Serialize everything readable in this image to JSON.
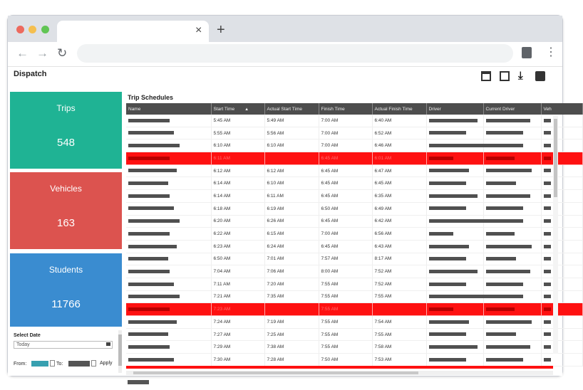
{
  "app": {
    "title": "Dispatch"
  },
  "browser": {
    "new_tab": "+",
    "tab_close": "×",
    "back": "←",
    "forward": "→",
    "reload": "↻",
    "menu": "⋮"
  },
  "toolbar": {
    "download_icon": "⤓"
  },
  "tiles": {
    "trips": {
      "label": "Trips",
      "value": "548",
      "color": "#1fb394"
    },
    "vehicles": {
      "label": "Vehicles",
      "value": "163",
      "color": "#dc534f"
    },
    "students": {
      "label": "Students",
      "value": "11766",
      "color": "#3a8cd0"
    }
  },
  "filters": {
    "select_date_label": "Select Date",
    "date_value": "Today",
    "from_label": "From:",
    "to_label": "To:",
    "apply_label": "Apply"
  },
  "grid": {
    "title": "Trip Schedules",
    "columns": [
      "Name",
      "Start Time",
      "Actual Start Time",
      "Finish Time",
      "Actual Finish Time",
      "Driver",
      "Current Driver",
      "Veh"
    ],
    "sort_indicator": "▲",
    "rows": [
      {
        "start": "5:45 AM",
        "actual_start": "5:49 AM",
        "finish": "7:00 AM",
        "actual_finish": "6:40 AM",
        "highlight": false
      },
      {
        "start": "5:55 AM",
        "actual_start": "5:56 AM",
        "finish": "7:00 AM",
        "actual_finish": "6:52 AM",
        "highlight": false
      },
      {
        "start": "6:10 AM",
        "actual_start": "6:10 AM",
        "finish": "7:00 AM",
        "actual_finish": "6:46 AM",
        "highlight": false
      },
      {
        "start": "6:11 AM",
        "actual_start": "",
        "finish": "6:45 AM",
        "actual_finish": "6:01 AM",
        "highlight": true
      },
      {
        "start": "6:12 AM",
        "actual_start": "6:12 AM",
        "finish": "6:45 AM",
        "actual_finish": "6:47 AM",
        "highlight": false
      },
      {
        "start": "6:14 AM",
        "actual_start": "6:10 AM",
        "finish": "6:45 AM",
        "actual_finish": "6:45 AM",
        "highlight": false
      },
      {
        "start": "6:14 AM",
        "actual_start": "6:11 AM",
        "finish": "6:45 AM",
        "actual_finish": "6:35 AM",
        "highlight": false
      },
      {
        "start": "6:18 AM",
        "actual_start": "6:19 AM",
        "finish": "6:50 AM",
        "actual_finish": "6:49 AM",
        "highlight": false
      },
      {
        "start": "6:20 AM",
        "actual_start": "6:26 AM",
        "finish": "6:45 AM",
        "actual_finish": "6:42 AM",
        "highlight": false
      },
      {
        "start": "6:22 AM",
        "actual_start": "6:15 AM",
        "finish": "7:00 AM",
        "actual_finish": "6:56 AM",
        "highlight": false
      },
      {
        "start": "6:23 AM",
        "actual_start": "6:24 AM",
        "finish": "6:45 AM",
        "actual_finish": "6:43 AM",
        "highlight": false
      },
      {
        "start": "6:50 AM",
        "actual_start": "7:01 AM",
        "finish": "7:57 AM",
        "actual_finish": "8:17 AM",
        "highlight": false
      },
      {
        "start": "7:04 AM",
        "actual_start": "7:06 AM",
        "finish": "8:00 AM",
        "actual_finish": "7:52 AM",
        "highlight": false
      },
      {
        "start": "7:11 AM",
        "actual_start": "7:20 AM",
        "finish": "7:55 AM",
        "actual_finish": "7:52 AM",
        "highlight": false
      },
      {
        "start": "7:21 AM",
        "actual_start": "7:35 AM",
        "finish": "7:55 AM",
        "actual_finish": "7:55 AM",
        "highlight": false
      },
      {
        "start": "7:23 AM",
        "actual_start": "",
        "finish": "7:55 AM",
        "actual_finish": "",
        "highlight": true
      },
      {
        "start": "7:24 AM",
        "actual_start": "7:19 AM",
        "finish": "7:55 AM",
        "actual_finish": "7:54 AM",
        "highlight": false
      },
      {
        "start": "7:27 AM",
        "actual_start": "7:25 AM",
        "finish": "7:55 AM",
        "actual_finish": "7:55 AM",
        "highlight": false
      },
      {
        "start": "7:29 AM",
        "actual_start": "7:38 AM",
        "finish": "7:55 AM",
        "actual_finish": "7:58 AM",
        "highlight": false
      },
      {
        "start": "7:30 AM",
        "actual_start": "7:28 AM",
        "finish": "7:50 AM",
        "actual_finish": "7:53 AM",
        "highlight": false
      }
    ]
  }
}
